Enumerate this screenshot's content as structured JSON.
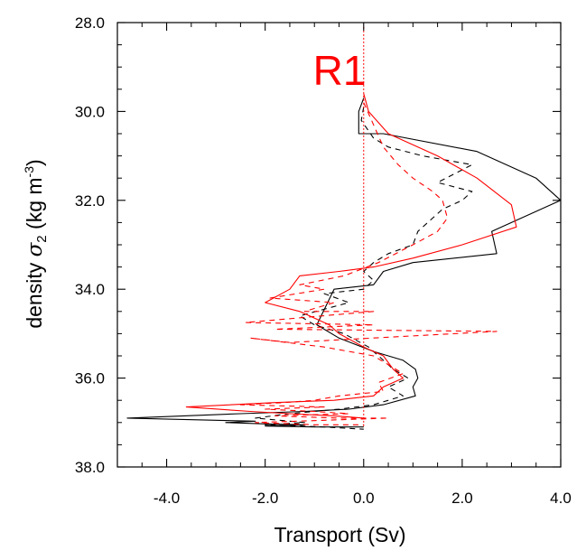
{
  "chart_data": {
    "type": "line",
    "title": "R1",
    "xlabel": "Transport (Sv)",
    "ylabel_main": "density ",
    "ylabel_symbol": "σ",
    "ylabel_sub": "2",
    "ylabel_units_open": " (kg m",
    "ylabel_units_exp": "-3",
    "ylabel_units_close": ")",
    "xlim": [
      -5,
      4
    ],
    "ylim": [
      28,
      38
    ],
    "y_inverted": true,
    "grid": false,
    "xticks": [
      -4,
      -2,
      0,
      2,
      4
    ],
    "xtick_labels": [
      "-4.0",
      "-2.0",
      "0.0",
      "2.0",
      "4.0"
    ],
    "xminor": [
      -5,
      -4.5,
      -3.5,
      -3,
      -2.5,
      -1.5,
      -1,
      -0.5,
      0.5,
      1,
      1.5,
      2.5,
      3,
      3.5
    ],
    "yticks": [
      28,
      30,
      32,
      34,
      36,
      38
    ],
    "ytick_labels": [
      "28.0",
      "30.0",
      "32.0",
      "34.0",
      "36.0",
      "38.0"
    ],
    "yminor": [
      28.5,
      29,
      29.5,
      30.5,
      31,
      31.5,
      32.5,
      33,
      33.5,
      34.5,
      35,
      35.5,
      36.5,
      37,
      37.5
    ],
    "zero_line": {
      "x": 0,
      "color": "#ff0000",
      "y_range": [
        28.1,
        37.1
      ]
    },
    "series": [
      {
        "color": "#000000",
        "dash": "solid",
        "points": [
          [
            0,
            29.7
          ],
          [
            -0.1,
            30.0
          ],
          [
            -0.1,
            30.5
          ],
          [
            0.4,
            30.5
          ],
          [
            2.3,
            30.9
          ],
          [
            3.5,
            31.5
          ],
          [
            4.0,
            32.0
          ],
          [
            2.6,
            32.7
          ],
          [
            2.7,
            33.2
          ],
          [
            1.0,
            33.4
          ],
          [
            0.4,
            33.6
          ],
          [
            0.2,
            33.9
          ],
          [
            -0.6,
            34.0
          ],
          [
            -0.95,
            34.8
          ],
          [
            -0.5,
            35.1
          ],
          [
            0.2,
            35.4
          ],
          [
            0.8,
            35.6
          ],
          [
            1.05,
            35.8
          ],
          [
            1.1,
            36.0
          ],
          [
            1.0,
            36.2
          ],
          [
            1.05,
            36.4
          ],
          [
            0.4,
            36.6
          ],
          [
            -0.3,
            36.7
          ],
          [
            -1.2,
            36.75
          ],
          [
            -2.5,
            36.8
          ],
          [
            -4.8,
            36.9
          ],
          [
            -3.0,
            36.95
          ],
          [
            -2.2,
            36.97
          ],
          [
            -2.8,
            37.0
          ],
          [
            -2.0,
            37.03
          ],
          [
            -1.2,
            37.05
          ],
          [
            -2.0,
            37.08
          ],
          [
            -1.0,
            37.1
          ],
          [
            0.0,
            37.1
          ]
        ]
      },
      {
        "color": "#000000",
        "dash": "6,5",
        "points": [
          [
            0,
            29.9
          ],
          [
            -0.05,
            30.2
          ],
          [
            0.2,
            30.6
          ],
          [
            0.5,
            30.8
          ],
          [
            1.2,
            31.0
          ],
          [
            2.2,
            31.2
          ],
          [
            1.5,
            31.6
          ],
          [
            2.2,
            31.8
          ],
          [
            2.0,
            32.0
          ],
          [
            1.6,
            32.2
          ],
          [
            1.1,
            32.7
          ],
          [
            1.0,
            33.0
          ],
          [
            0.5,
            33.2
          ],
          [
            0.2,
            33.4
          ],
          [
            0.0,
            33.6
          ],
          [
            0.2,
            33.8
          ],
          [
            0.0,
            34.0
          ],
          [
            -0.8,
            34.1
          ],
          [
            -0.3,
            34.3
          ],
          [
            -1.3,
            34.6
          ],
          [
            -1.0,
            34.8
          ],
          [
            -0.4,
            35.0
          ],
          [
            0.1,
            35.3
          ],
          [
            0.4,
            35.6
          ],
          [
            0.6,
            35.8
          ],
          [
            0.9,
            36.0
          ],
          [
            0.5,
            36.2
          ],
          [
            0.8,
            36.4
          ],
          [
            0.2,
            36.6
          ],
          [
            -0.5,
            36.7
          ],
          [
            -1.5,
            36.8
          ],
          [
            -2.2,
            36.9
          ],
          [
            -1.2,
            37.0
          ],
          [
            -2.0,
            37.05
          ],
          [
            -0.8,
            37.1
          ],
          [
            0.0,
            37.15
          ]
        ]
      },
      {
        "color": "#ff0000",
        "dash": "solid",
        "points": [
          [
            0,
            29.6
          ],
          [
            0.1,
            30.0
          ],
          [
            0.5,
            30.5
          ],
          [
            1.5,
            31.0
          ],
          [
            2.3,
            31.5
          ],
          [
            3.0,
            32.1
          ],
          [
            3.1,
            32.6
          ],
          [
            2.0,
            33.0
          ],
          [
            1.0,
            33.3
          ],
          [
            0.2,
            33.5
          ],
          [
            -0.5,
            33.6
          ],
          [
            -1.3,
            33.7
          ],
          [
            -1.5,
            34.0
          ],
          [
            -2.0,
            34.3
          ],
          [
            -1.3,
            34.5
          ],
          [
            -0.7,
            34.8
          ],
          [
            -0.5,
            35.0
          ],
          [
            0.0,
            35.3
          ],
          [
            0.4,
            35.5
          ],
          [
            0.6,
            35.8
          ],
          [
            0.8,
            36.0
          ],
          [
            0.4,
            36.2
          ],
          [
            0.2,
            36.4
          ],
          [
            -0.6,
            36.5
          ],
          [
            -1.8,
            36.55
          ],
          [
            -3.6,
            36.65
          ],
          [
            -2.3,
            36.75
          ],
          [
            -1.5,
            36.8
          ],
          [
            -0.6,
            36.85
          ],
          [
            0.0,
            36.9
          ]
        ]
      },
      {
        "color": "#ff0000",
        "dash": "6,5",
        "points": [
          [
            0,
            29.8
          ],
          [
            0.2,
            30.3
          ],
          [
            0.4,
            30.8
          ],
          [
            0.7,
            31.2
          ],
          [
            1.0,
            31.5
          ],
          [
            1.4,
            31.8
          ],
          [
            1.6,
            32.0
          ],
          [
            1.7,
            32.4
          ],
          [
            1.5,
            32.7
          ],
          [
            1.0,
            33.0
          ],
          [
            0.3,
            33.4
          ],
          [
            -0.4,
            33.7
          ],
          [
            -1.3,
            33.9
          ],
          [
            -0.8,
            34.0
          ],
          [
            -1.9,
            34.2
          ],
          [
            -0.6,
            34.3
          ],
          [
            -1.2,
            34.5
          ],
          [
            0.2,
            34.5
          ],
          [
            -2.4,
            34.75
          ],
          [
            0.2,
            34.8
          ],
          [
            -1.8,
            34.9
          ],
          [
            2.7,
            34.95
          ],
          [
            -1.5,
            35.2
          ],
          [
            -2.3,
            35.1
          ],
          [
            -0.8,
            35.3
          ],
          [
            0.2,
            35.5
          ],
          [
            0.5,
            35.7
          ],
          [
            0.8,
            35.9
          ],
          [
            0.3,
            36.1
          ],
          [
            0.4,
            36.3
          ],
          [
            -0.5,
            36.4
          ],
          [
            -1.0,
            36.5
          ],
          [
            -1.6,
            36.55
          ],
          [
            -2.5,
            36.6
          ],
          [
            -0.8,
            36.65
          ],
          [
            -2.0,
            36.7
          ],
          [
            -1.0,
            36.75
          ],
          [
            -0.3,
            36.8
          ],
          [
            -1.8,
            36.85
          ],
          [
            -0.5,
            36.9
          ],
          [
            0.5,
            36.9
          ],
          [
            -0.8,
            36.95
          ],
          [
            -2.2,
            37.0
          ],
          [
            -1.0,
            37.05
          ],
          [
            0.0,
            37.05
          ]
        ]
      }
    ]
  }
}
